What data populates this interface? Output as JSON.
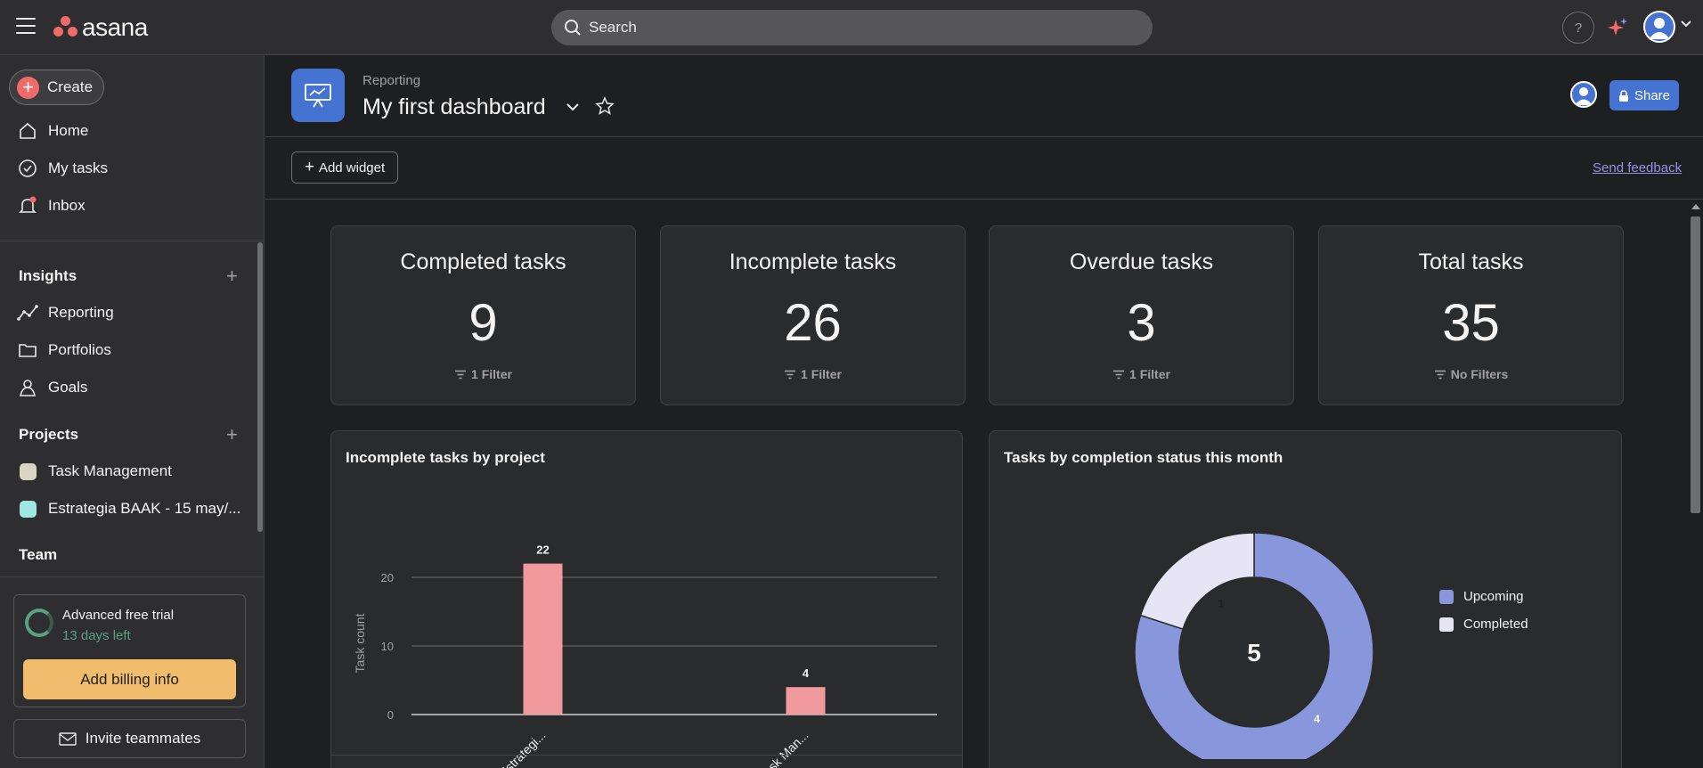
{
  "topbar": {
    "logo_text": "asana",
    "search_placeholder": "Search",
    "help_label": "?"
  },
  "sidebar": {
    "create_label": "Create",
    "nav": [
      {
        "label": "Home",
        "icon": "home-icon"
      },
      {
        "label": "My tasks",
        "icon": "check-circle-icon"
      },
      {
        "label": "Inbox",
        "icon": "bell-icon"
      }
    ],
    "insights": {
      "title": "Insights",
      "items": [
        {
          "label": "Reporting",
          "icon": "reporting-icon"
        },
        {
          "label": "Portfolios",
          "icon": "folder-icon"
        },
        {
          "label": "Goals",
          "icon": "goals-icon"
        }
      ]
    },
    "projects": {
      "title": "Projects",
      "items": [
        {
          "label": "Task Management",
          "color": "#d9d5c2"
        },
        {
          "label": "Estrategia BAAK - 15 may/...",
          "color": "#9ee7e3"
        }
      ]
    },
    "team_title": "Team",
    "trial": {
      "title": "Advanced free trial",
      "days_left": "13 days left",
      "billing_label": "Add billing info"
    },
    "invite_label": "Invite teammates"
  },
  "header": {
    "breadcrumb": "Reporting",
    "title": "My first dashboard",
    "share_label": "Share"
  },
  "toolbar": {
    "add_widget_label": "Add widget",
    "feedback_label": "Send feedback"
  },
  "stats": [
    {
      "title": "Completed tasks",
      "value": "9",
      "filter": "1 Filter"
    },
    {
      "title": "Incomplete tasks",
      "value": "26",
      "filter": "1 Filter"
    },
    {
      "title": "Overdue tasks",
      "value": "3",
      "filter": "1 Filter"
    },
    {
      "title": "Total tasks",
      "value": "35",
      "filter": "No Filters"
    }
  ],
  "colors": {
    "accent_blue": "#4573d2",
    "bar": "#f09a9d",
    "upcoming": "#8896dc",
    "completed": "#e6e4f5",
    "trial_green": "#58a182",
    "billing": "#f1bd6c"
  },
  "chart_data": [
    {
      "type": "bar",
      "title": "Incomplete tasks by project",
      "categories": [
        "Estrategi...",
        "Task Man..."
      ],
      "values": [
        22,
        4
      ],
      "data_labels": [
        "22",
        "4"
      ],
      "ylabel": "Task count",
      "xlabel": "",
      "yticks": [
        "0",
        "10",
        "20"
      ],
      "ylim": [
        0,
        25
      ],
      "grid": true
    },
    {
      "type": "pie",
      "title": "Tasks by completion status this month",
      "center_label": "5",
      "slices": [
        {
          "name": "Upcoming",
          "value": 4,
          "label": "4"
        },
        {
          "name": "Completed",
          "value": 1,
          "label": "1"
        }
      ],
      "legend": [
        "Upcoming",
        "Completed"
      ],
      "legend_position": "right"
    }
  ]
}
